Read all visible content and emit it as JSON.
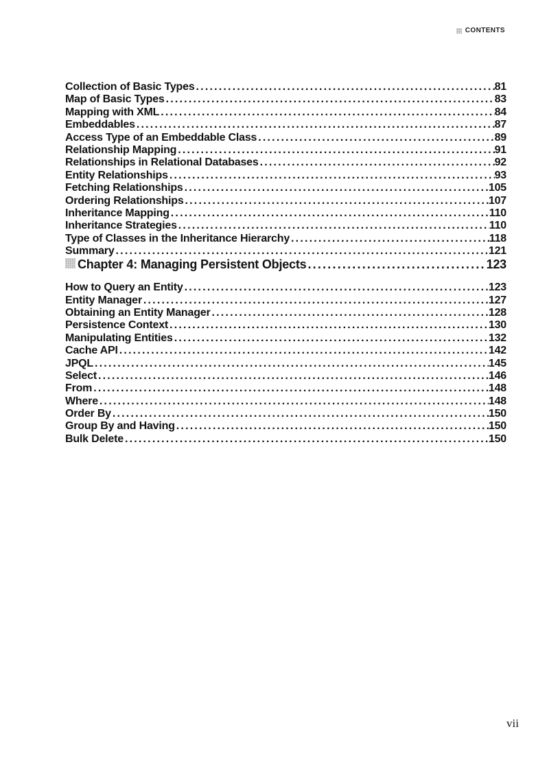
{
  "header": {
    "label": "CONTENTS",
    "icon": "halftone-square-icon"
  },
  "footer": {
    "page_number": "vii"
  },
  "colors": {
    "text": "#111111",
    "icon_gray": "#9a9a9a",
    "background": "#ffffff"
  },
  "toc": {
    "entries": [
      {
        "label": "Collection of Basic Types",
        "page": "81",
        "level": "l2"
      },
      {
        "label": "Map of Basic Types",
        "page": "83",
        "level": "l2"
      },
      {
        "label": "Mapping with XML",
        "page": "84",
        "level": "l1"
      },
      {
        "label": "Embeddables",
        "page": "87",
        "level": "l1"
      },
      {
        "label": "Access Type of an Embeddable Class",
        "page": "89",
        "level": "l2"
      },
      {
        "label": "Relationship Mapping",
        "page": "91",
        "level": "l1"
      },
      {
        "label": "Relationships in Relational Databases",
        "page": "92",
        "level": "l2"
      },
      {
        "label": "Entity Relationships",
        "page": "93",
        "level": "l2"
      },
      {
        "label": "Fetching Relationships",
        "page": "105",
        "level": "l2"
      },
      {
        "label": "Ordering Relationships",
        "page": "107",
        "level": "l2"
      },
      {
        "label": "Inheritance Mapping",
        "page": "110",
        "level": "l1"
      },
      {
        "label": "Inheritance Strategies",
        "page": "110",
        "level": "l2"
      },
      {
        "label": "Type of Classes in the Inheritance Hierarchy",
        "page": "118",
        "level": "l2"
      },
      {
        "label": "Summary",
        "page": "121",
        "level": "l1"
      },
      {
        "label": "Chapter 4: Managing Persistent Objects",
        "page": "123",
        "level": "chapter"
      },
      {
        "label": "How to Query an Entity",
        "page": "123",
        "level": "l1"
      },
      {
        "label": "Entity Manager",
        "page": "127",
        "level": "l1"
      },
      {
        "label": "Obtaining an Entity Manager",
        "page": "128",
        "level": "l2"
      },
      {
        "label": "Persistence Context",
        "page": "130",
        "level": "l2"
      },
      {
        "label": "Manipulating Entities",
        "page": "132",
        "level": "l2"
      },
      {
        "label": "Cache API",
        "page": "142",
        "level": "l2"
      },
      {
        "label": "JPQL",
        "page": "145",
        "level": "l1"
      },
      {
        "label": "Select",
        "page": "146",
        "level": "l2"
      },
      {
        "label": "From",
        "page": "148",
        "level": "l2"
      },
      {
        "label": "Where",
        "page": "148",
        "level": "l2"
      },
      {
        "label": "Order By",
        "page": "150",
        "level": "l2"
      },
      {
        "label": "Group By and Having",
        "page": "150",
        "level": "l2"
      },
      {
        "label": "Bulk Delete",
        "page": "150",
        "level": "l2"
      }
    ]
  }
}
